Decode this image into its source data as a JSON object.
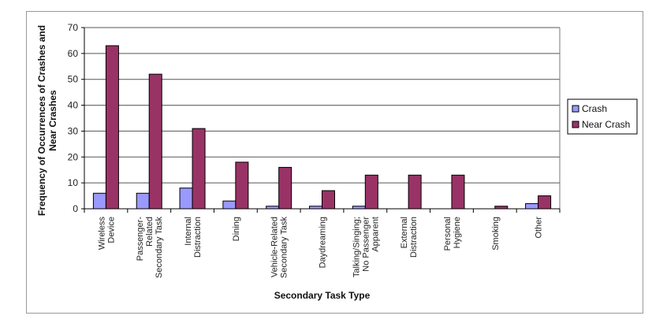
{
  "chart_data": {
    "type": "bar",
    "title": "",
    "xlabel": "Secondary Task Type",
    "ylabel": "Frequency of Occurrences of Crashes and Near Crashes",
    "ylim": [
      0,
      70
    ],
    "yticks": [
      0,
      10,
      20,
      30,
      40,
      50,
      60,
      70
    ],
    "grid": true,
    "legend_position": "right",
    "categories": [
      [
        "Wireless",
        "Device"
      ],
      [
        "Passenger-",
        "Related",
        "Secondary Task"
      ],
      [
        "Internal",
        "Distraction"
      ],
      [
        "Dining"
      ],
      [
        "Vehicle-Related",
        "Secondary Task"
      ],
      [
        "Daydreaming"
      ],
      [
        "Talking/Singing;",
        "No Passenger",
        "Apparent"
      ],
      [
        "External",
        "Distraction"
      ],
      [
        "Personal",
        "Hygiene"
      ],
      [
        "Smoking"
      ],
      [
        "Other"
      ]
    ],
    "series": [
      {
        "name": "Crash",
        "color": "#9999ff",
        "values": [
          6,
          6,
          8,
          3,
          1,
          1,
          1,
          0,
          0,
          0,
          2
        ]
      },
      {
        "name": "Near Crash",
        "color": "#993366",
        "values": [
          63,
          52,
          31,
          18,
          16,
          7,
          13,
          13,
          13,
          1,
          5
        ]
      }
    ]
  }
}
